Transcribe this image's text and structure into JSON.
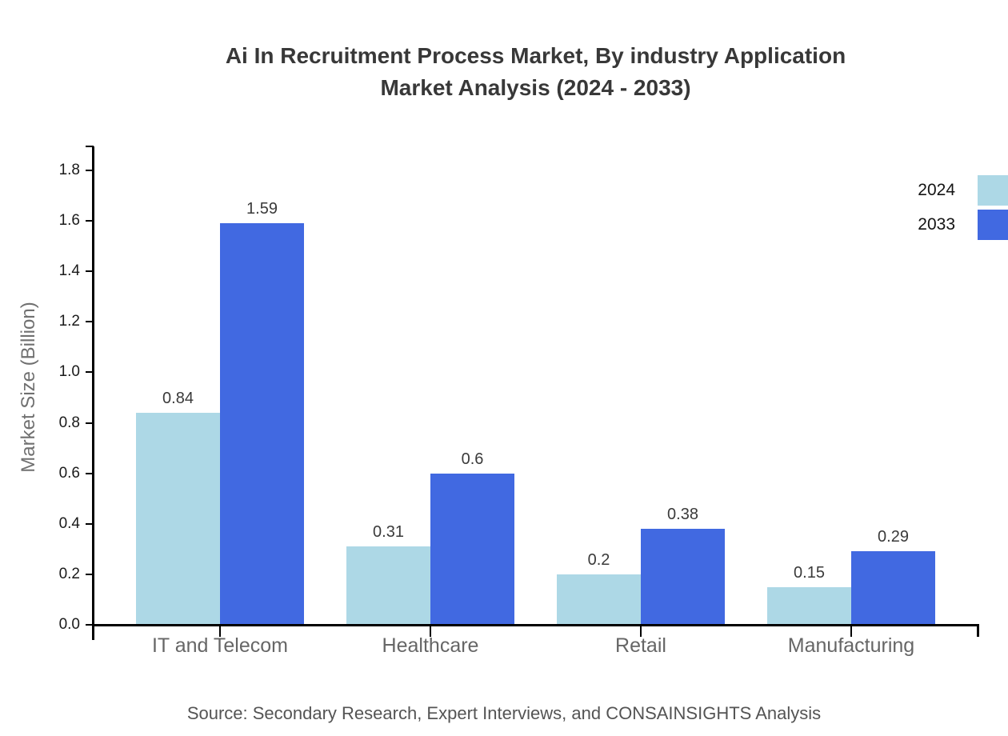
{
  "title": {
    "line1": "Ai In Recruitment Process Market, By industry Application",
    "line2": "Market Analysis (2024 - 2033)"
  },
  "source": "Source: Secondary Research, Expert Interviews, and CONSAINSIGHTS Analysis",
  "chart_data": {
    "type": "bar",
    "title": "Ai In Recruitment Process Market, By industry Application Market Analysis (2024 - 2033)",
    "xlabel": "",
    "ylabel": "Market Size (Billion)",
    "categories": [
      "IT and Telecom",
      "Healthcare",
      "Retail",
      "Manufacturing"
    ],
    "series": [
      {
        "name": "2024",
        "color": "#add8e6",
        "values": [
          0.84,
          0.31,
          0.2,
          0.15
        ],
        "labels": [
          "0.84",
          "0.31",
          "0.2",
          "0.15"
        ]
      },
      {
        "name": "2033",
        "color": "#4169e1",
        "values": [
          1.59,
          0.6,
          0.38,
          0.29
        ],
        "labels": [
          "1.59",
          "0.6",
          "0.38",
          "0.29"
        ]
      }
    ],
    "yticks": [
      0.0,
      0.2,
      0.4,
      0.6,
      0.8,
      1.0,
      1.2,
      1.4,
      1.6,
      1.8
    ],
    "ytick_labels": [
      "0.0",
      "0.2",
      "0.4",
      "0.6",
      "0.8",
      "1.0",
      "1.2",
      "1.4",
      "1.6",
      "1.8"
    ],
    "ylim": [
      0,
      1.9
    ],
    "grid": false,
    "legend_position": "top-right"
  }
}
